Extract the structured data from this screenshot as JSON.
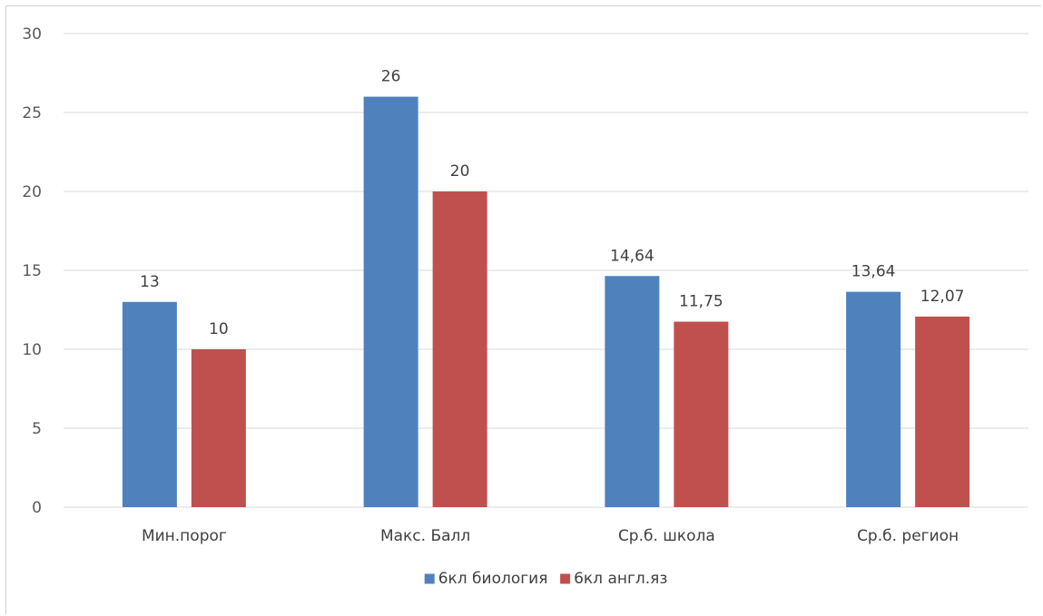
{
  "chart_data": {
    "type": "bar",
    "title": "",
    "xlabel": "",
    "ylabel": "",
    "ylim": [
      0,
      30
    ],
    "yticks": [
      0,
      5,
      10,
      15,
      20,
      25,
      30
    ],
    "grid": true,
    "legend_position": "bottom",
    "categories": [
      "Мин.порог",
      "Макс. Балл",
      "Ср.б. школа",
      "Ср.б. регион"
    ],
    "series": [
      {
        "name": "6кл биология",
        "color": "#4f81bd",
        "values": [
          13,
          26,
          14.64,
          13.64
        ],
        "labels": [
          "13",
          "26",
          "14,64",
          "13,64"
        ]
      },
      {
        "name": "6кл англ.яз",
        "color": "#c0504d",
        "values": [
          10,
          20,
          11.75,
          12.07
        ],
        "labels": [
          "10",
          "20",
          "11,75",
          "12,07"
        ]
      }
    ]
  }
}
